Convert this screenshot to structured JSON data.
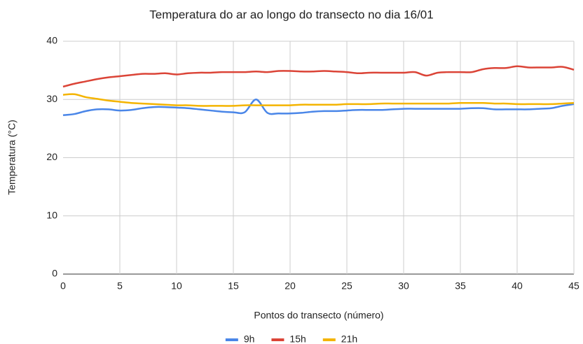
{
  "chart_data": {
    "type": "line",
    "title": "Temperatura do ar ao longo do transecto no dia 16/01",
    "xlabel": "Pontos do transecto (número)",
    "ylabel": "Temperatura (°C)",
    "x": [
      0,
      1,
      2,
      3,
      4,
      5,
      6,
      7,
      8,
      9,
      10,
      11,
      12,
      13,
      14,
      15,
      16,
      17,
      18,
      19,
      20,
      21,
      22,
      23,
      24,
      25,
      26,
      27,
      28,
      29,
      30,
      31,
      32,
      33,
      34,
      35,
      36,
      37,
      38,
      39,
      40,
      41,
      42,
      43,
      44,
      45
    ],
    "series": [
      {
        "name": "9h",
        "color": "#4a86e8",
        "values": [
          27.3,
          27.5,
          28.0,
          28.3,
          28.3,
          28.1,
          28.2,
          28.5,
          28.7,
          28.7,
          28.6,
          28.5,
          28.3,
          28.1,
          27.9,
          27.8,
          27.8,
          30.0,
          27.7,
          27.6,
          27.6,
          27.7,
          27.9,
          28.0,
          28.0,
          28.1,
          28.2,
          28.2,
          28.2,
          28.3,
          28.4,
          28.4,
          28.4,
          28.4,
          28.4,
          28.4,
          28.5,
          28.5,
          28.3,
          28.3,
          28.3,
          28.3,
          28.4,
          28.5,
          28.9,
          29.2
        ]
      },
      {
        "name": "15h",
        "color": "#db4437",
        "values": [
          32.2,
          32.7,
          33.1,
          33.5,
          33.8,
          34.0,
          34.2,
          34.4,
          34.4,
          34.5,
          34.3,
          34.5,
          34.6,
          34.6,
          34.7,
          34.7,
          34.7,
          34.8,
          34.7,
          34.9,
          34.9,
          34.8,
          34.8,
          34.9,
          34.8,
          34.7,
          34.5,
          34.6,
          34.6,
          34.6,
          34.6,
          34.7,
          34.1,
          34.6,
          34.7,
          34.7,
          34.7,
          35.2,
          35.4,
          35.4,
          35.7,
          35.5,
          35.5,
          35.5,
          35.6,
          35.1
        ]
      },
      {
        "name": "21h",
        "color": "#f4b400",
        "values": [
          30.8,
          30.9,
          30.4,
          30.1,
          29.8,
          29.6,
          29.4,
          29.3,
          29.2,
          29.1,
          29.0,
          29.0,
          28.9,
          28.9,
          28.9,
          28.9,
          29.0,
          29.0,
          29.0,
          29.0,
          29.0,
          29.1,
          29.1,
          29.1,
          29.1,
          29.2,
          29.2,
          29.2,
          29.3,
          29.3,
          29.3,
          29.3,
          29.3,
          29.3,
          29.3,
          29.4,
          29.4,
          29.4,
          29.3,
          29.3,
          29.2,
          29.2,
          29.2,
          29.2,
          29.3,
          29.4
        ]
      }
    ],
    "xlim": [
      0,
      45
    ],
    "xticks": [
      0,
      5,
      10,
      15,
      20,
      25,
      30,
      35,
      40,
      45
    ],
    "ylim": [
      0,
      40
    ],
    "yticks": [
      0,
      10,
      20,
      30,
      40
    ],
    "grid": true,
    "legend": "bottom"
  }
}
